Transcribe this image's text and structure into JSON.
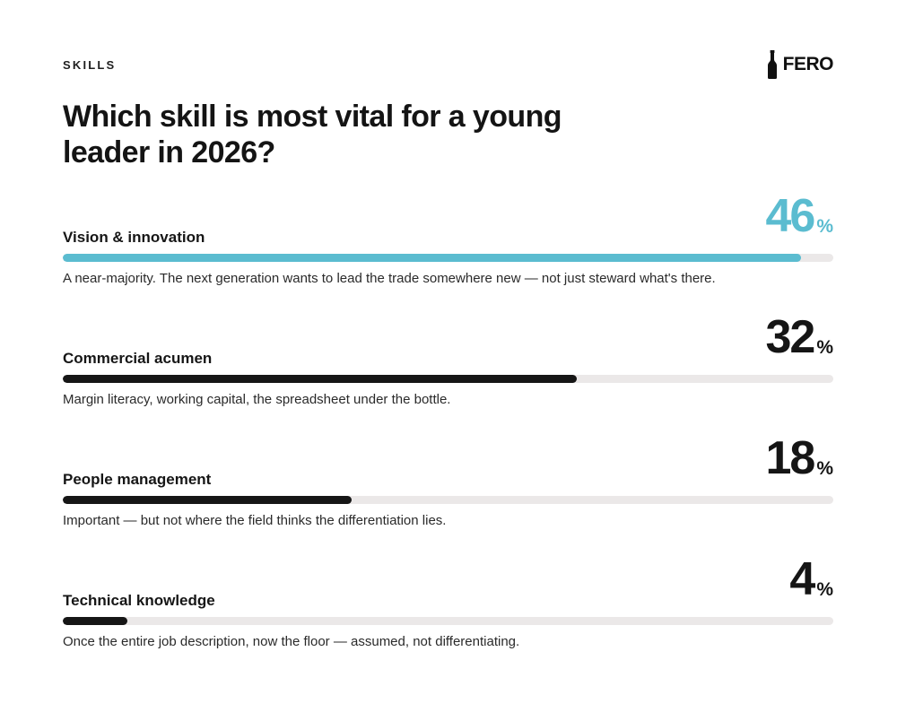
{
  "header": {
    "eyebrow": "SKILLS",
    "brand_name": "FERO",
    "brand_icon": "bottle-icon"
  },
  "chart_data": {
    "type": "bar",
    "orientation": "horizontal",
    "title": "Which skill is most vital for a young leader in 2026?",
    "unit": "%",
    "xlim": [
      0,
      48
    ],
    "highlight_color": "#5bbcd0",
    "bar_color": "#161616",
    "track_color": "#ebe8e8",
    "items": [
      {
        "label": "Vision & innovation",
        "value": 46,
        "note": "A near-majority. The next generation wants to lead the trade somewhere new — not just steward what's there.",
        "highlight": true
      },
      {
        "label": "Commercial acumen",
        "value": 32,
        "note": "Margin literacy, working capital, the spreadsheet under the bottle.",
        "highlight": false
      },
      {
        "label": "People management",
        "value": 18,
        "note": "Important — but not where the field thinks the differentiation lies.",
        "highlight": false
      },
      {
        "label": "Technical knowledge",
        "value": 4,
        "note": "Once the entire job description, now the floor — assumed, not differentiating.",
        "highlight": false
      }
    ]
  }
}
